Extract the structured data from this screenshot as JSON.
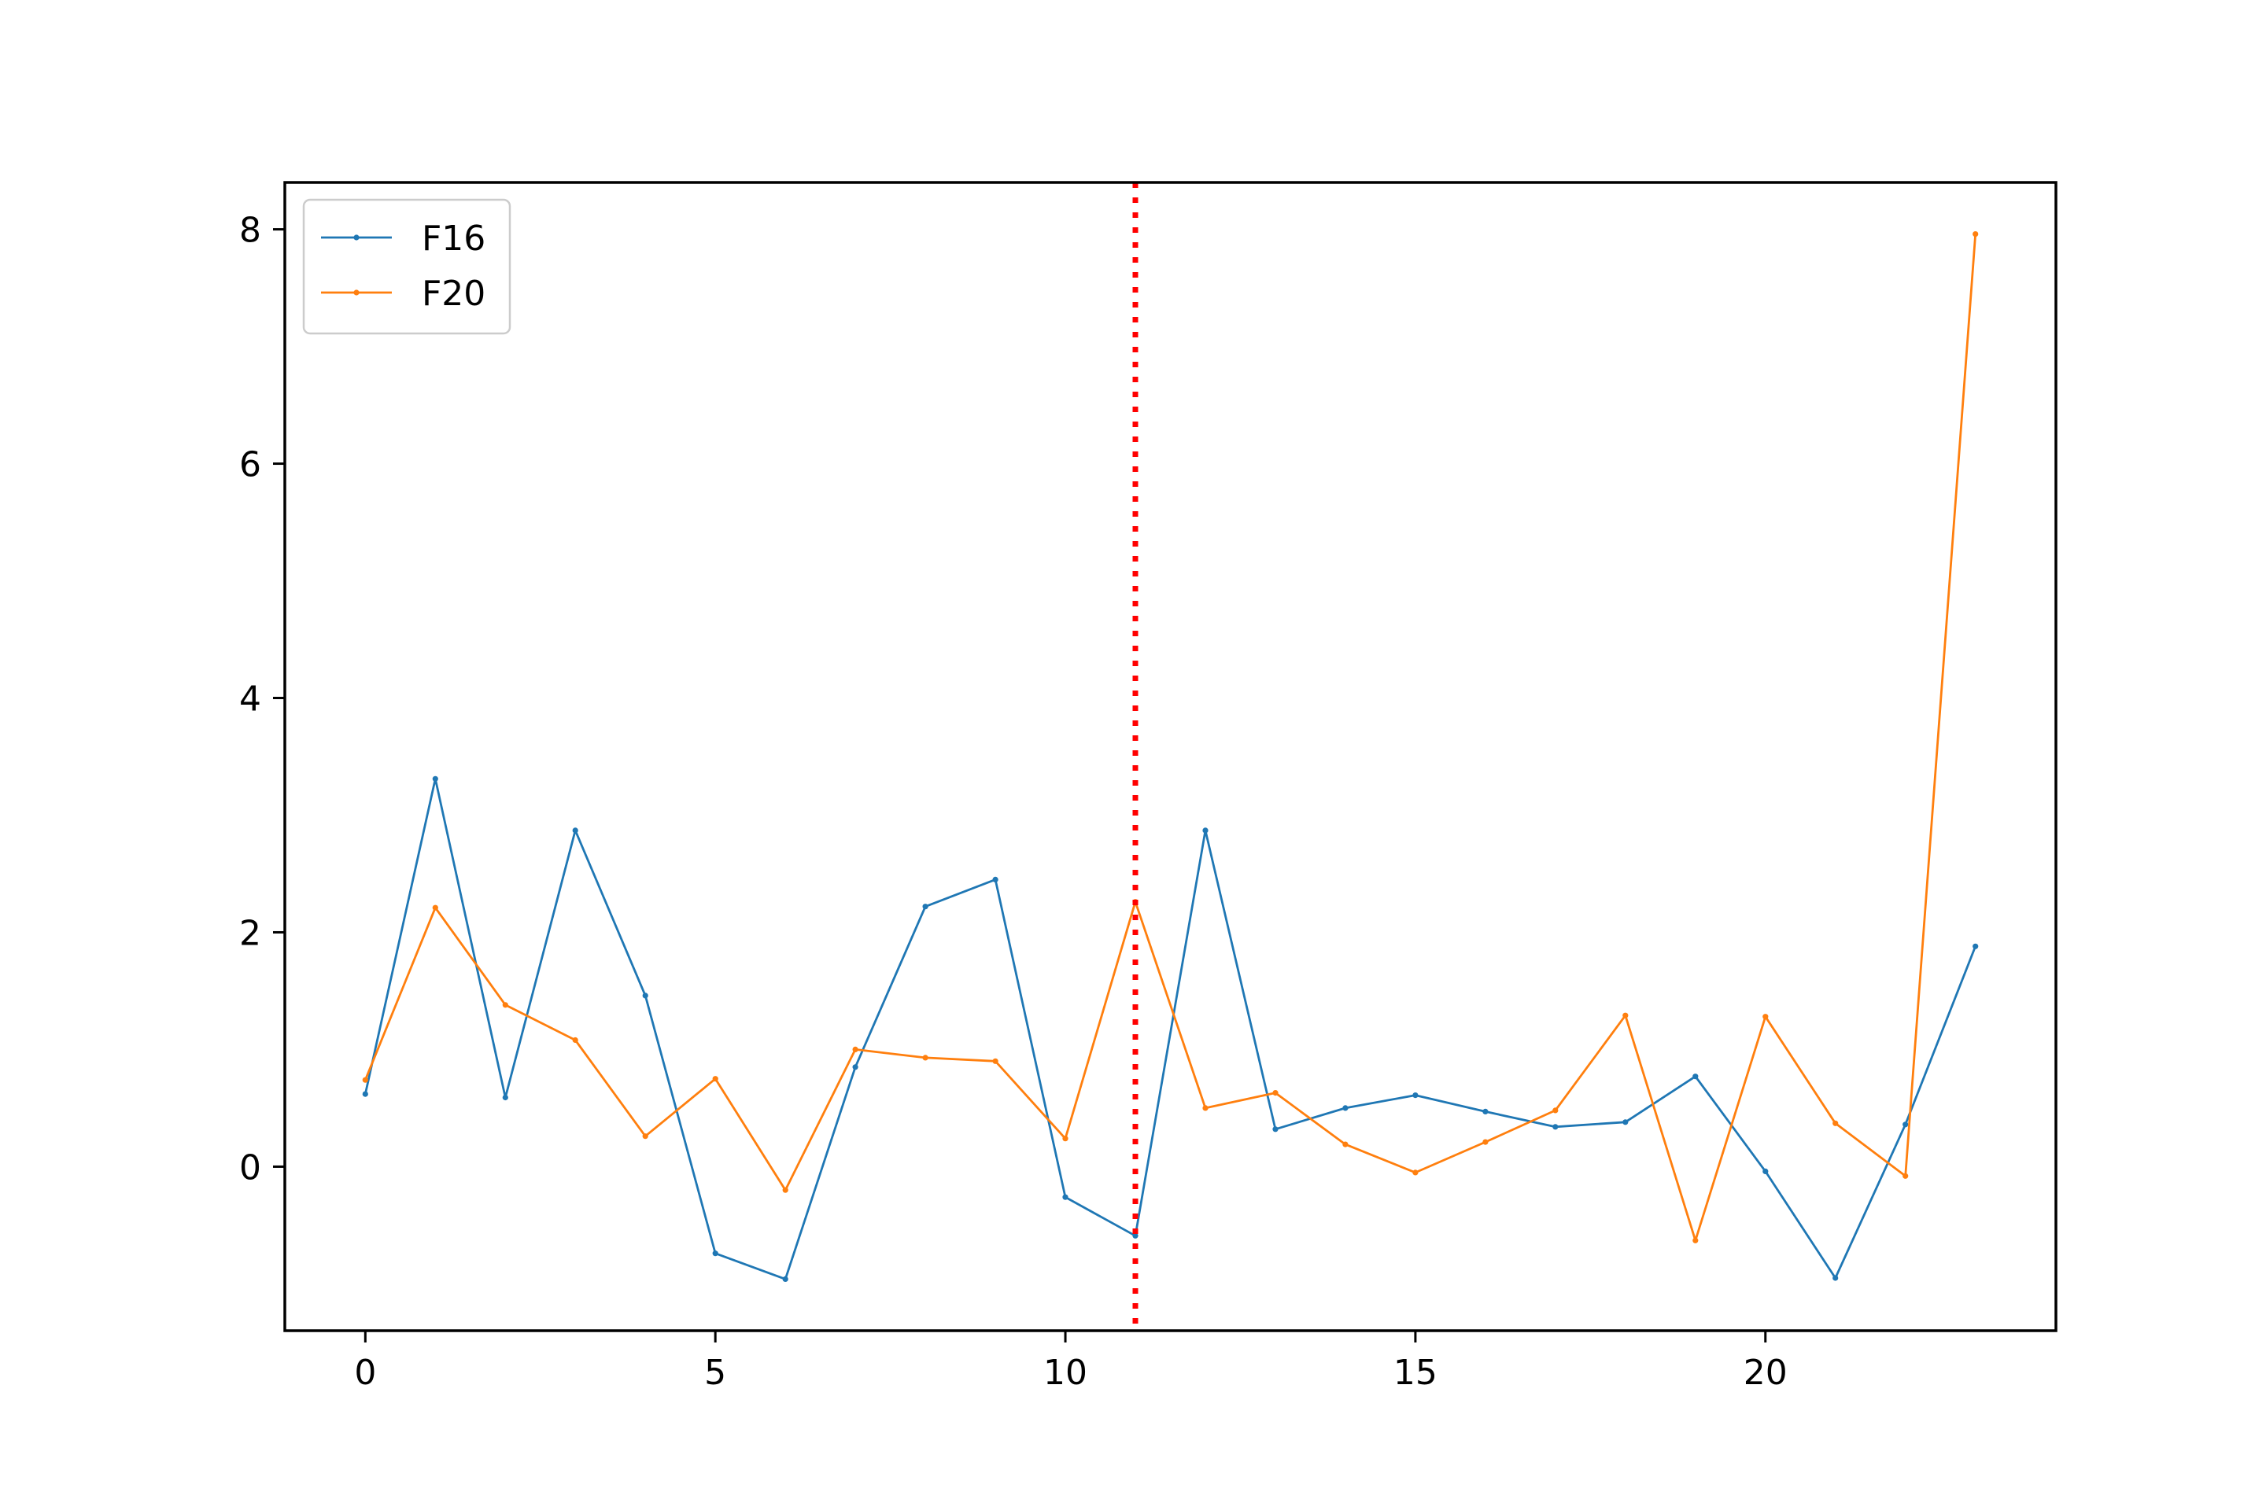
{
  "chart_data": {
    "type": "line",
    "title": "",
    "xlabel": "",
    "ylabel": "",
    "xlim": [
      -1.15,
      24.15
    ],
    "ylim": [
      -1.4,
      8.4
    ],
    "x_ticks": [
      0,
      5,
      10,
      15,
      20
    ],
    "y_ticks": [
      0,
      2,
      4,
      6,
      8
    ],
    "grid": false,
    "legend_position": "upper-left",
    "x": [
      0,
      1,
      2,
      3,
      4,
      5,
      6,
      7,
      8,
      9,
      10,
      11,
      12,
      13,
      14,
      15,
      16,
      17,
      18,
      19,
      20,
      21,
      22,
      23
    ],
    "series": [
      {
        "name": "F16",
        "color": "#1f77b4",
        "values": [
          0.62,
          3.31,
          0.59,
          2.87,
          1.46,
          -0.74,
          -0.96,
          0.85,
          2.22,
          2.45,
          -0.26,
          -0.59,
          2.87,
          0.32,
          0.5,
          0.61,
          0.47,
          0.34,
          0.38,
          0.77,
          -0.04,
          -0.95,
          0.36,
          1.88
        ]
      },
      {
        "name": "F20",
        "color": "#ff7f0e",
        "values": [
          0.74,
          2.21,
          1.38,
          1.08,
          0.26,
          0.75,
          -0.2,
          1.0,
          0.93,
          0.9,
          0.24,
          2.26,
          0.5,
          0.63,
          0.19,
          -0.05,
          0.21,
          0.48,
          1.29,
          -0.63,
          1.28,
          0.37,
          -0.08,
          7.96
        ]
      }
    ],
    "annotations": [
      {
        "type": "vertical-line",
        "x": 11,
        "color": "#ff0000",
        "style": "dotted"
      }
    ]
  }
}
